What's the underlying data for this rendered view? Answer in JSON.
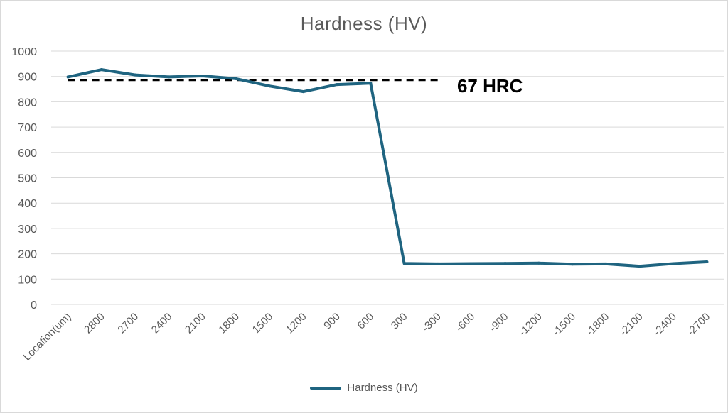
{
  "chart_data": {
    "type": "line",
    "title": "Hardness  (HV)",
    "categories": [
      "Location(um)",
      "2800",
      "2700",
      "2400",
      "2100",
      "1800",
      "1500",
      "1200",
      "900",
      "600",
      "300",
      "-300",
      "-600",
      "-900",
      "-1200",
      "-1500",
      "-1800",
      "-2100",
      "-2400",
      "-2700"
    ],
    "series": [
      {
        "name": "Hardness  (HV)",
        "color": "#1f6480",
        "values": [
          898,
          927,
          906,
          898,
          902,
          891,
          862,
          840,
          868,
          873,
          162,
          160,
          161,
          162,
          163,
          159,
          160,
          151,
          161,
          168
        ]
      }
    ],
    "ylim": [
      0,
      1000
    ],
    "yticks": [
      0,
      100,
      200,
      300,
      400,
      500,
      600,
      700,
      800,
      900,
      1000
    ],
    "grid": true,
    "legend_position": "bottom",
    "reference_line": {
      "value": 885,
      "label": "67 HRC",
      "style": "dashed",
      "from_category": 0,
      "to_category": 11
    }
  }
}
